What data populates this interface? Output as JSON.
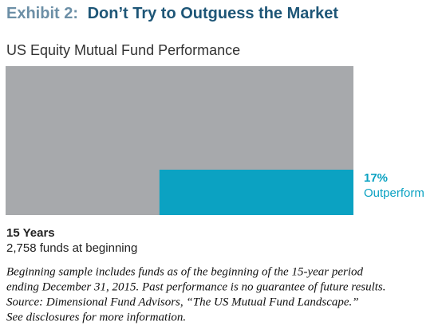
{
  "chart_data": {
    "type": "proportion",
    "title_prefix": "Exhibit 2:",
    "title": "Don’t Try to Outguess the Market",
    "subtitle": "US Equity Mutual Fund Performance",
    "whole_color": "#a7a9ac",
    "categories": [
      "Outperform"
    ],
    "values": [
      17
    ],
    "value_labels": [
      "17%"
    ],
    "color": "#0ba2c2",
    "period": "15 Years",
    "period_note": "2,758 funds at beginning",
    "notes": [
      "Beginning sample includes funds as of the beginning of the 15-year period",
      "ending December 31, 2015. Past performance is no guarantee of future results.",
      "Source: Dimensional Fund Advisors, “The US Mutual Fund Landscape.”",
      "See disclosures for more information."
    ]
  }
}
